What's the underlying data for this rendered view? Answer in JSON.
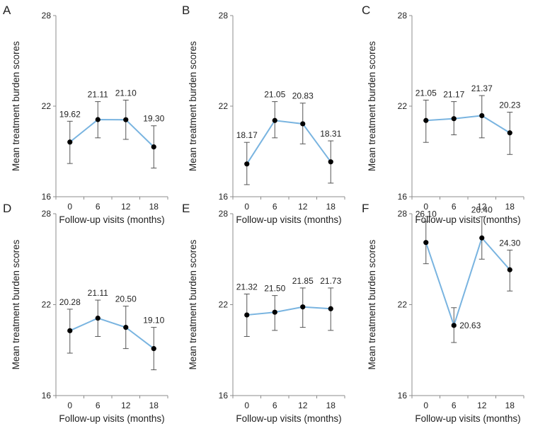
{
  "chart_data": [
    {
      "panel": "A",
      "type": "line",
      "categories": [
        "0",
        "6",
        "12",
        "18"
      ],
      "values": [
        19.62,
        21.11,
        21.1,
        19.3
      ],
      "value_labels": [
        "19.62",
        "21.11",
        "21.10",
        "19.30"
      ],
      "error_low": [
        18.2,
        19.9,
        19.8,
        17.9
      ],
      "error_high": [
        21.0,
        22.3,
        22.4,
        20.7
      ],
      "xlabel": "Follow-up visits (months)",
      "ylabel": "Mean treatment burden scores",
      "ylim": [
        16,
        28
      ],
      "yticks": [
        "16",
        "22",
        "28"
      ]
    },
    {
      "panel": "B",
      "type": "line",
      "categories": [
        "0",
        "6",
        "12",
        "18"
      ],
      "values": [
        18.17,
        21.05,
        20.83,
        18.31
      ],
      "value_labels": [
        "18.17",
        "21.05",
        "20.83",
        "18.31"
      ],
      "error_low": [
        16.8,
        19.9,
        19.5,
        16.9
      ],
      "error_high": [
        19.6,
        22.3,
        22.2,
        19.7
      ],
      "xlabel": "Follow-up visits (months)",
      "ylabel": "Mean treatment burden scores",
      "ylim": [
        16,
        28
      ],
      "yticks": [
        "16",
        "22",
        "28"
      ]
    },
    {
      "panel": "C",
      "type": "line",
      "categories": [
        "0",
        "6",
        "12",
        "18"
      ],
      "values": [
        21.05,
        21.17,
        21.37,
        20.23
      ],
      "value_labels": [
        "21.05",
        "21.17",
        "21.37",
        "20.23"
      ],
      "error_low": [
        19.6,
        20.1,
        19.9,
        18.8
      ],
      "error_high": [
        22.4,
        22.3,
        22.7,
        21.6
      ],
      "xlabel": "Follow-up visits (months)",
      "ylabel": "Mean treatment burden scores",
      "ylim": [
        16,
        28
      ],
      "yticks": [
        "16",
        "22",
        "28"
      ]
    },
    {
      "panel": "D",
      "type": "line",
      "categories": [
        "0",
        "6",
        "12",
        "18"
      ],
      "values": [
        20.28,
        21.11,
        20.5,
        19.1
      ],
      "value_labels": [
        "20.28",
        "21.11",
        "20.50",
        "19.10"
      ],
      "error_low": [
        18.8,
        19.9,
        19.1,
        17.7
      ],
      "error_high": [
        21.7,
        22.3,
        21.9,
        20.5
      ],
      "xlabel": "Follow-up visits (months)",
      "ylabel": "Mean treatment burden scores",
      "ylim": [
        16,
        28
      ],
      "yticks": [
        "16",
        "22",
        "28"
      ]
    },
    {
      "panel": "E",
      "type": "line",
      "categories": [
        "0",
        "6",
        "12",
        "18"
      ],
      "values": [
        21.32,
        21.5,
        21.85,
        21.73
      ],
      "value_labels": [
        "21.32",
        "21.50",
        "21.85",
        "21.73"
      ],
      "error_low": [
        19.9,
        20.3,
        20.5,
        20.3
      ],
      "error_high": [
        22.7,
        22.6,
        23.1,
        23.1
      ],
      "xlabel": "Follow-up visits (months)",
      "ylabel": "Mean treatment burden scores",
      "ylim": [
        16,
        28
      ],
      "yticks": [
        "16",
        "22",
        "28"
      ]
    },
    {
      "panel": "F",
      "type": "line",
      "categories": [
        "0",
        "6",
        "12",
        "18"
      ],
      "values": [
        26.1,
        20.63,
        26.4,
        24.3
      ],
      "value_labels": [
        "26.10",
        "20.63",
        "26.40",
        "24.30"
      ],
      "error_low": [
        24.7,
        19.5,
        25.0,
        22.9
      ],
      "error_high": [
        27.5,
        21.8,
        27.8,
        25.6
      ],
      "xlabel": "Follow-up visits (months)",
      "ylabel": "Mean treatment burden scores",
      "ylim": [
        16,
        28
      ],
      "yticks": [
        "16",
        "22",
        "28"
      ]
    }
  ],
  "colors": {
    "line": "#79b4e0",
    "marker": "#000000",
    "axis": "#8c8c8c",
    "error_bar": "#555555",
    "text": "#222222"
  }
}
